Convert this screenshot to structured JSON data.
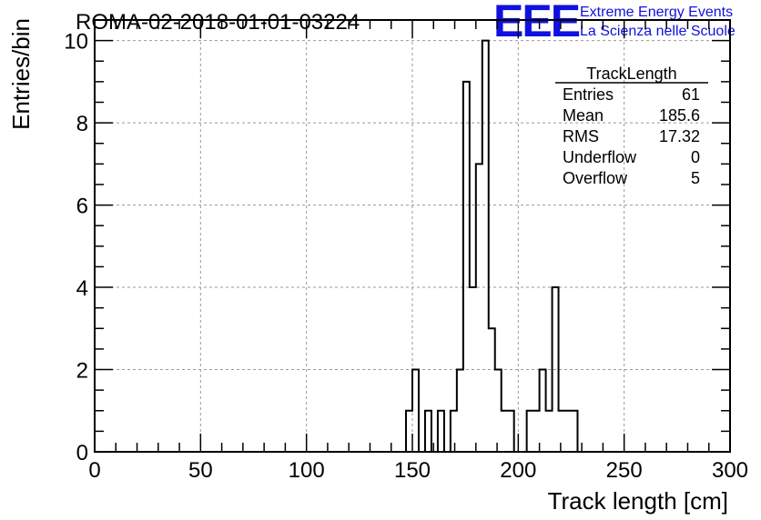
{
  "chart_data": {
    "type": "bar",
    "title": "ROMA-02-2018-01-01-03224",
    "xlabel": "Track length [cm]",
    "ylabel": "Entries/bin",
    "xlim": [
      0,
      300
    ],
    "ylim": [
      0,
      10.5
    ],
    "xticks": [
      "0",
      "50",
      "100",
      "150",
      "200",
      "250",
      "300"
    ],
    "yticks": [
      "0",
      "2",
      "4",
      "6",
      "8",
      "10"
    ],
    "grid": true,
    "bin_width": 3,
    "bins": [
      {
        "x": 147,
        "value": 1
      },
      {
        "x": 150,
        "value": 2
      },
      {
        "x": 156,
        "value": 1
      },
      {
        "x": 162,
        "value": 1
      },
      {
        "x": 168,
        "value": 1
      },
      {
        "x": 171,
        "value": 2
      },
      {
        "x": 174,
        "value": 9
      },
      {
        "x": 177,
        "value": 4
      },
      {
        "x": 180,
        "value": 7
      },
      {
        "x": 183,
        "value": 10
      },
      {
        "x": 186,
        "value": 3
      },
      {
        "x": 189,
        "value": 2
      },
      {
        "x": 192,
        "value": 1
      },
      {
        "x": 195,
        "value": 1
      },
      {
        "x": 204,
        "value": 1
      },
      {
        "x": 207,
        "value": 1
      },
      {
        "x": 210,
        "value": 2
      },
      {
        "x": 213,
        "value": 1
      },
      {
        "x": 216,
        "value": 4
      },
      {
        "x": 219,
        "value": 1
      },
      {
        "x": 222,
        "value": 1
      },
      {
        "x": 225,
        "value": 1
      }
    ],
    "stats": {
      "title": "TrackLength",
      "rows": [
        {
          "label": "Entries",
          "value": "61"
        },
        {
          "label": "Mean",
          "value": "185.6"
        },
        {
          "label": "RMS",
          "value": "17.32"
        },
        {
          "label": "Underflow",
          "value": "0"
        },
        {
          "label": "Overflow",
          "value": "5"
        }
      ]
    }
  },
  "branding": {
    "logo_text": "EEE",
    "line1": "Extreme Energy Events",
    "line2": "La Scienza nelle Scuole",
    "color": "#1010e0"
  }
}
